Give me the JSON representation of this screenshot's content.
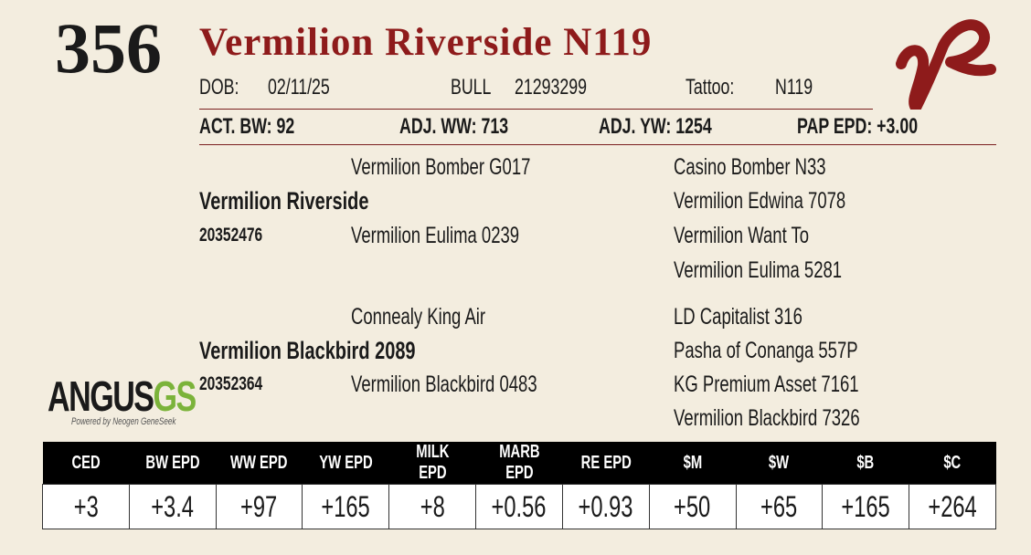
{
  "lot": "356",
  "name": "Vermilion Riverside N119",
  "info": {
    "dob_label": "DOB:",
    "dob": "02/11/25",
    "sex": "BULL",
    "reg": "21293299",
    "tattoo_label": "Tattoo:",
    "tattoo": "N119"
  },
  "measures": [
    "ACT. BW: 92",
    "ADJ. WW: 713",
    "ADJ. YW: 1254",
    "PAP EPD: +3.00"
  ],
  "pedigree": {
    "sire": {
      "name": "Vermilion Riverside",
      "reg": "20352476",
      "sire": "Vermilion Bomber G017",
      "dam": "Vermilion Eulima 0239",
      "grandparents": [
        "Casino Bomber N33",
        "Vermilion Edwina 7078",
        "Vermilion Want To",
        "Vermilion Eulima 5281"
      ]
    },
    "dam": {
      "name": "Vermilion Blackbird 2089",
      "reg": "20352364",
      "sire": "Connealy King Air",
      "dam": "Vermilion Blackbird 0483",
      "grandparents": [
        "LD Capitalist 316",
        "Pasha of Conanga 557P",
        "KG Premium Asset 7161",
        "Vermilion Blackbird 7326"
      ]
    }
  },
  "logo": {
    "angus": "ANGUS",
    "gs": "GS",
    "tagline": "Powered by Neogen GeneSeek"
  },
  "epd_table": {
    "headers": [
      "CED",
      "BW EPD",
      "WW EPD",
      "YW EPD",
      "MILK EPD",
      "MARB EPD",
      "RE EPD",
      "$M",
      "$W",
      "$B",
      "$C"
    ],
    "values": [
      "+3",
      "+3.4",
      "+97",
      "+165",
      "+8",
      "+0.56",
      "+0.93",
      "+50",
      "+65",
      "+165",
      "+264"
    ]
  }
}
